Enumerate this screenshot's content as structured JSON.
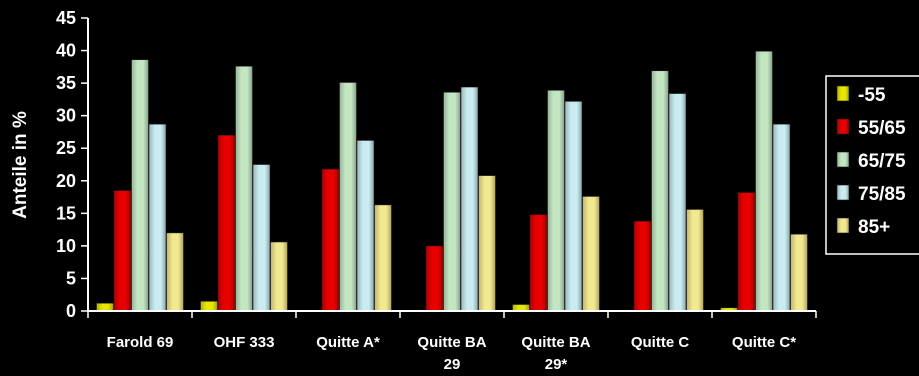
{
  "chart_data": {
    "type": "bar",
    "title": "",
    "xlabel": "",
    "ylabel": "Anteile in %",
    "ylim": [
      0,
      45
    ],
    "yticks": [
      0,
      5,
      10,
      15,
      20,
      25,
      30,
      35,
      40,
      45
    ],
    "grid": false,
    "legend_position": "right",
    "categories": [
      [
        "Farold 69"
      ],
      [
        "OHF 333"
      ],
      [
        "Quitte A*"
      ],
      [
        "Quitte BA",
        "29"
      ],
      [
        "Quitte BA",
        "29*"
      ],
      [
        "Quitte C"
      ],
      [
        "Quitte C*"
      ]
    ],
    "series": [
      {
        "name": "-55",
        "color": "#e6e600",
        "values": [
          1.2,
          1.5,
          0,
          0,
          1.0,
          0,
          0.5
        ]
      },
      {
        "name": "55/65",
        "color": "#e60000",
        "values": [
          18.5,
          27.0,
          21.8,
          10.0,
          14.8,
          13.8,
          18.2
        ]
      },
      {
        "name": "65/75",
        "color": "#c3e6c3",
        "values": [
          38.6,
          37.6,
          35.1,
          33.6,
          33.9,
          36.9,
          39.9
        ]
      },
      {
        "name": "75/85",
        "color": "#c8ecf0",
        "values": [
          28.7,
          22.5,
          26.2,
          34.4,
          32.2,
          33.4,
          28.7
        ]
      },
      {
        "name": "85+",
        "color": "#f2e890",
        "values": [
          12.0,
          10.6,
          16.3,
          20.8,
          17.6,
          15.6,
          11.8
        ]
      }
    ]
  }
}
